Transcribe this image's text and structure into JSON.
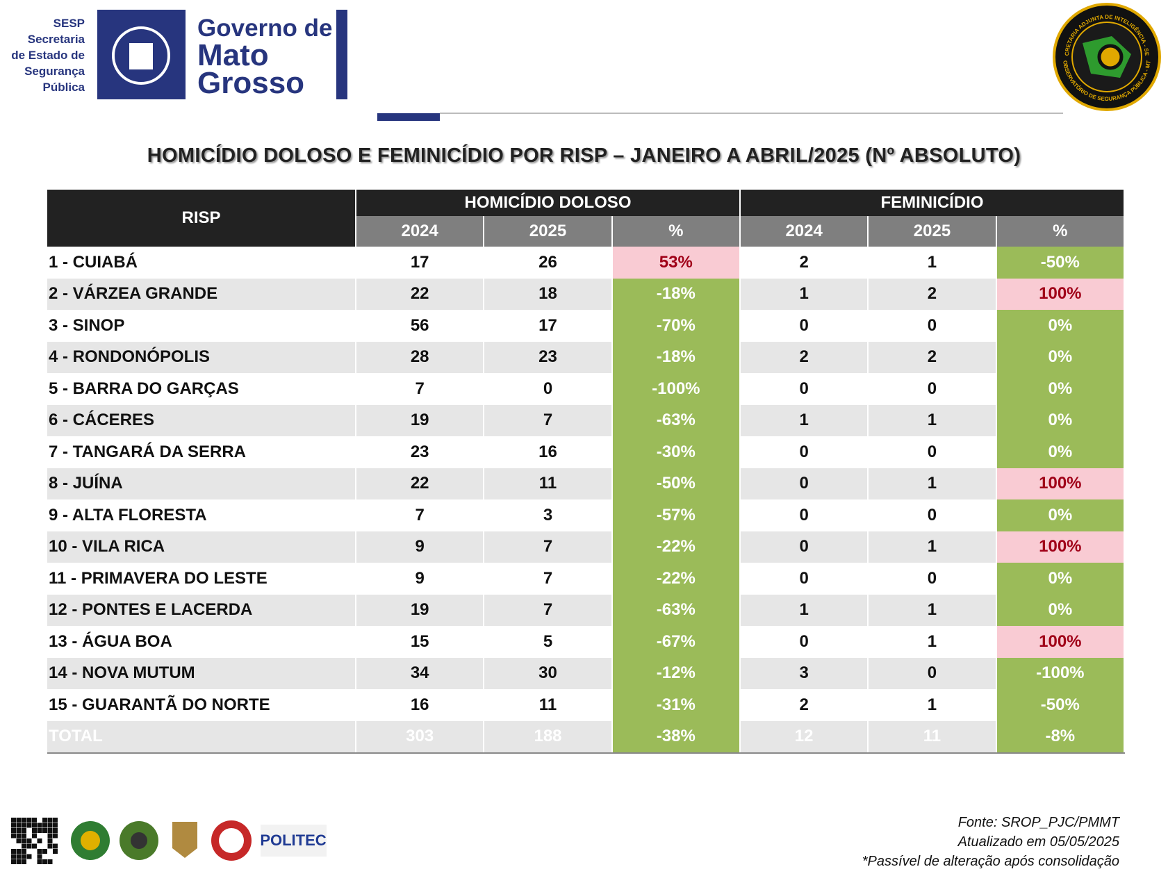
{
  "header": {
    "agency_short": "SESP",
    "agency_lines": [
      "Secretaria",
      "de Estado de",
      "Segurança",
      "Pública"
    ],
    "government_lines": [
      "Governo de",
      "Mato",
      "Grosso"
    ],
    "seal_top": "SECRETARIA ADJUNTA DE INTELIGÊNCIA - SESP",
    "seal_bottom": "OBSERVATÓRIO DE SEGURANÇA PÚBLICA - MT"
  },
  "title": "HOMICÍDIO DOLOSO E FEMINICÍDIO POR RISP – JANEIRO A ABRIL/2025 (Nº ABSOLUTO)",
  "table": {
    "risp": "RISP",
    "groups": [
      "HOMICÍDIO DOLOSO",
      "FEMINICÍDIO"
    ],
    "subheaders": [
      "2024",
      "2025",
      "%",
      "2024",
      "2025",
      "%"
    ],
    "colors": {
      "increase_bg": "#f9cbd3",
      "increase_text": "#a00018",
      "decrease_bg": "#9bbb59",
      "decrease_text": "#ffffff"
    },
    "rows": [
      [
        "1 - CUIABÁ",
        17,
        26,
        "53%",
        2,
        1,
        "-50%"
      ],
      [
        "2 - VÁRZEA GRANDE",
        22,
        18,
        "-18%",
        1,
        2,
        "100%"
      ],
      [
        "3 - SINOP",
        56,
        17,
        "-70%",
        0,
        0,
        "0%"
      ],
      [
        "4 - RONDONÓPOLIS",
        28,
        23,
        "-18%",
        2,
        2,
        "0%"
      ],
      [
        "5 - BARRA DO GARÇAS",
        7,
        0,
        "-100%",
        0,
        0,
        "0%"
      ],
      [
        "6 - CÁCERES",
        19,
        7,
        "-63%",
        1,
        1,
        "0%"
      ],
      [
        "7 - TANGARÁ DA SERRA",
        23,
        16,
        "-30%",
        0,
        0,
        "0%"
      ],
      [
        "8 - JUÍNA",
        22,
        11,
        "-50%",
        0,
        1,
        "100%"
      ],
      [
        "9 - ALTA FLORESTA",
        7,
        3,
        "-57%",
        0,
        0,
        "0%"
      ],
      [
        "10 - VILA RICA",
        9,
        7,
        "-22%",
        0,
        1,
        "100%"
      ],
      [
        "11 - PRIMAVERA DO LESTE",
        9,
        7,
        "-22%",
        0,
        0,
        "0%"
      ],
      [
        "12 - PONTES E LACERDA",
        19,
        7,
        "-63%",
        1,
        1,
        "0%"
      ],
      [
        "13 - ÁGUA BOA",
        15,
        5,
        "-67%",
        0,
        1,
        "100%"
      ],
      [
        "14 - NOVA MUTUM",
        34,
        30,
        "-12%",
        3,
        0,
        "-100%"
      ],
      [
        "15 - GUARANTÃ DO NORTE",
        16,
        11,
        "-31%",
        2,
        1,
        "-50%"
      ]
    ],
    "total": [
      "TOTAL",
      303,
      188,
      "-38%",
      12,
      11,
      "-8%"
    ]
  },
  "footer": {
    "logo_text": "POLITEC",
    "source": "Fonte: SROP_PJC/PMMT",
    "updated": "Atualizado em 05/05/2025",
    "note": "*Passível de alteração após consolidação"
  }
}
